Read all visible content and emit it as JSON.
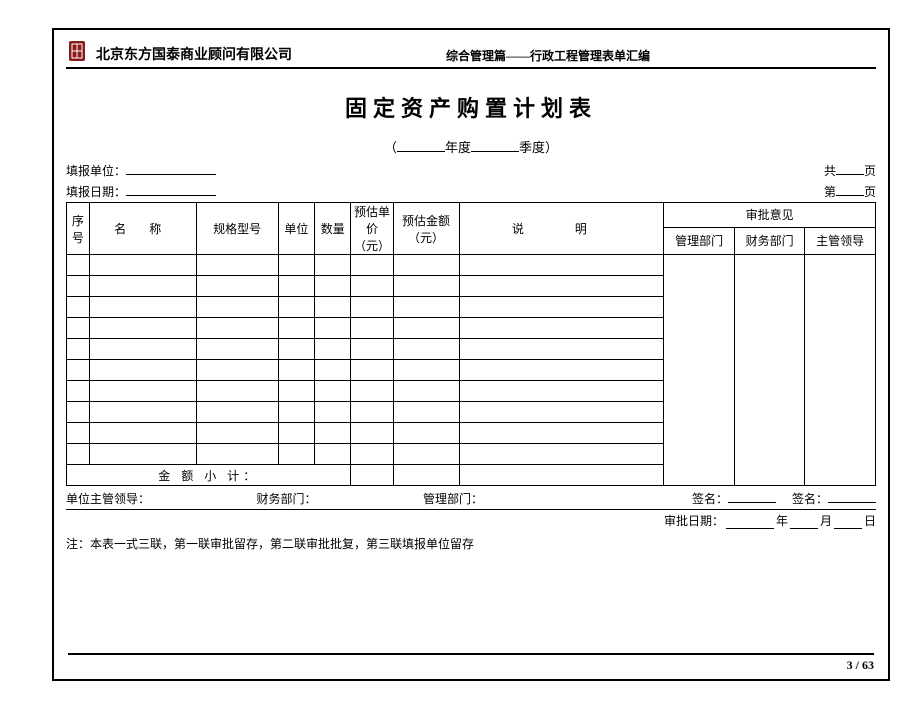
{
  "header": {
    "company_name": "北京东方国泰商业顾问有限公司",
    "doc_category": "综合管理篇——行政工程管理表单汇编"
  },
  "title": {
    "main": "固定资产购置计划表",
    "year_label": "年度",
    "quarter_label": "季度"
  },
  "meta": {
    "report_unit_label": "填报单位：",
    "report_date_label": "填报日期：",
    "total_pages_prefix": "共",
    "page_suffix": "页",
    "current_page_prefix": "第"
  },
  "table": {
    "columns": {
      "seq": "序号",
      "name": "名 称",
      "model": "规格型号",
      "unit": "单位",
      "qty": "数量",
      "est_price": "预估单价（元）",
      "est_amount": "预估金额（元）",
      "desc": "说 明",
      "approval_group": "审批意见",
      "approval_mgmt": "管理部门",
      "approval_fin": "财务部门",
      "approval_leader": "主管领导"
    },
    "body_row_count": 10,
    "subtotal_label": "金 额 小 计："
  },
  "signatures": {
    "unit_leader": "单位主管领导：",
    "finance_dept": "财务部门：",
    "mgmt_dept": "管理部门：",
    "sign_label": "签名：",
    "approve_date_label": "审批日期：",
    "year": "年",
    "month": "月",
    "day": "日"
  },
  "note": "注：本表一式三联，第一联审批留存，第二联审批批复，第三联填报单位留存",
  "footer": {
    "page_label": "3  /  63"
  },
  "colors": {
    "logo_fill": "#8a1a1a",
    "text": "#000000",
    "border": "#000000"
  }
}
